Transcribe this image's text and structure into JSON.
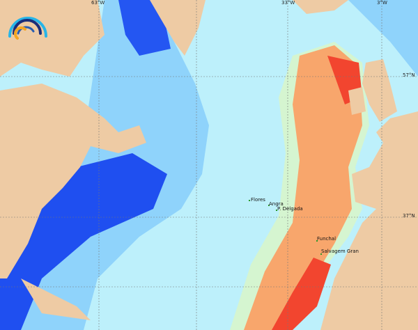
{
  "map": {
    "longitude_labels": [
      "63°W",
      "33°W",
      "3°W"
    ],
    "latitude_labels": [
      "57°N",
      "37°N"
    ],
    "places": [
      "Flores",
      "Angra",
      "P. Delgada",
      "Funchal",
      "Salvagem Gran"
    ],
    "colors": {
      "land": "#eecba4",
      "ocean_light": "#bdf0fb",
      "ocean_mid": "#8fd3fb",
      "ocean_deep": "#1f4ff0",
      "warm": "#f8a66c",
      "hot": "#f2452f",
      "logo_blue": "#27b5e8",
      "logo_navy": "#1a2d7a",
      "logo_orange": "#f5a623"
    },
    "logo": "ocean-observatory-arc-logo"
  }
}
